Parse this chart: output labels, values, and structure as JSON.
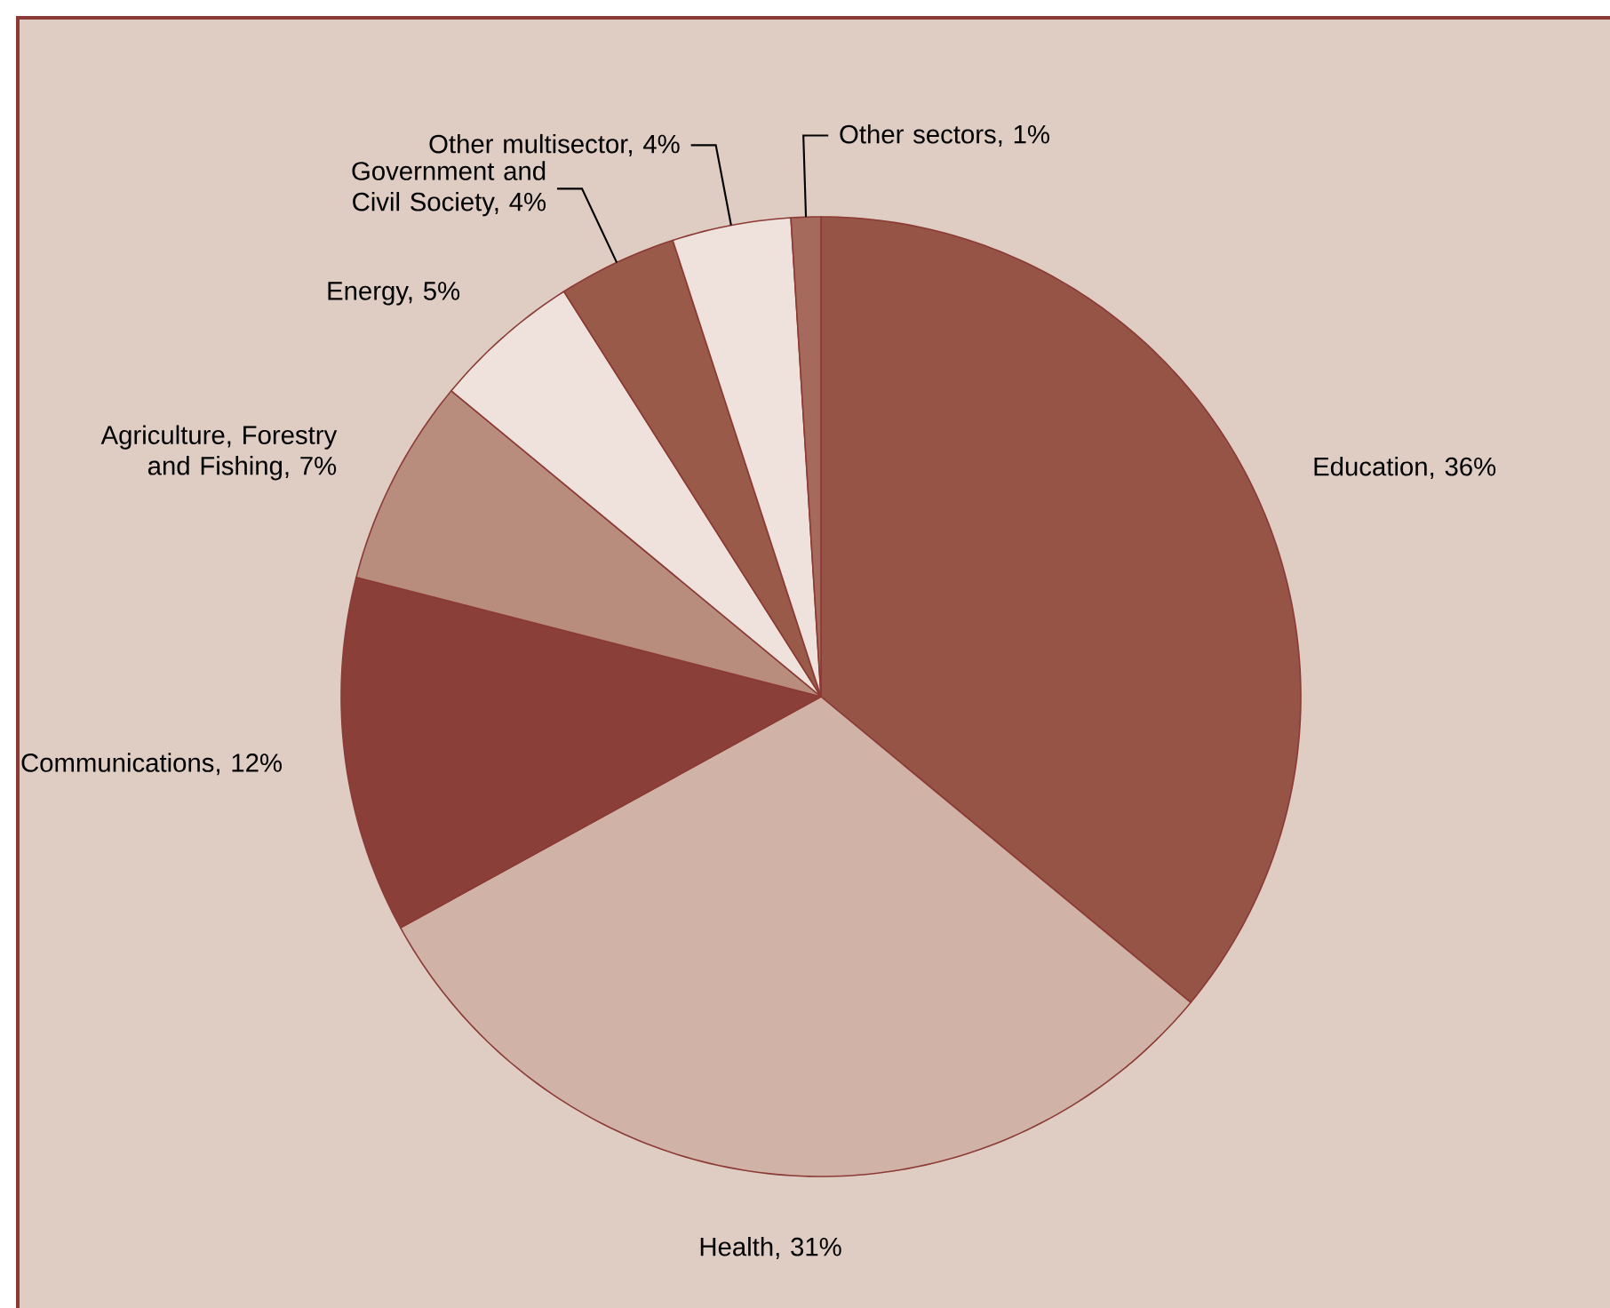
{
  "chart_data": {
    "type": "pie",
    "categories": [
      "Education, 36%",
      "Health, 31%",
      "Communications, 12%",
      "Agriculture, Forestry and Fishing, 7%",
      "Energy, 5%",
      "Government and Civil Society, 4%",
      "Other multisector, 4%",
      "Other sectors, 1%"
    ],
    "values": [
      36,
      31,
      12,
      7,
      5,
      4,
      4,
      1
    ],
    "colors": [
      "#955446",
      "#d0b2a7",
      "#8a4038",
      "#b98d7d",
      "#efe2dc",
      "#9a5a4a",
      "#efe2dc",
      "#a56a5c"
    ]
  }
}
